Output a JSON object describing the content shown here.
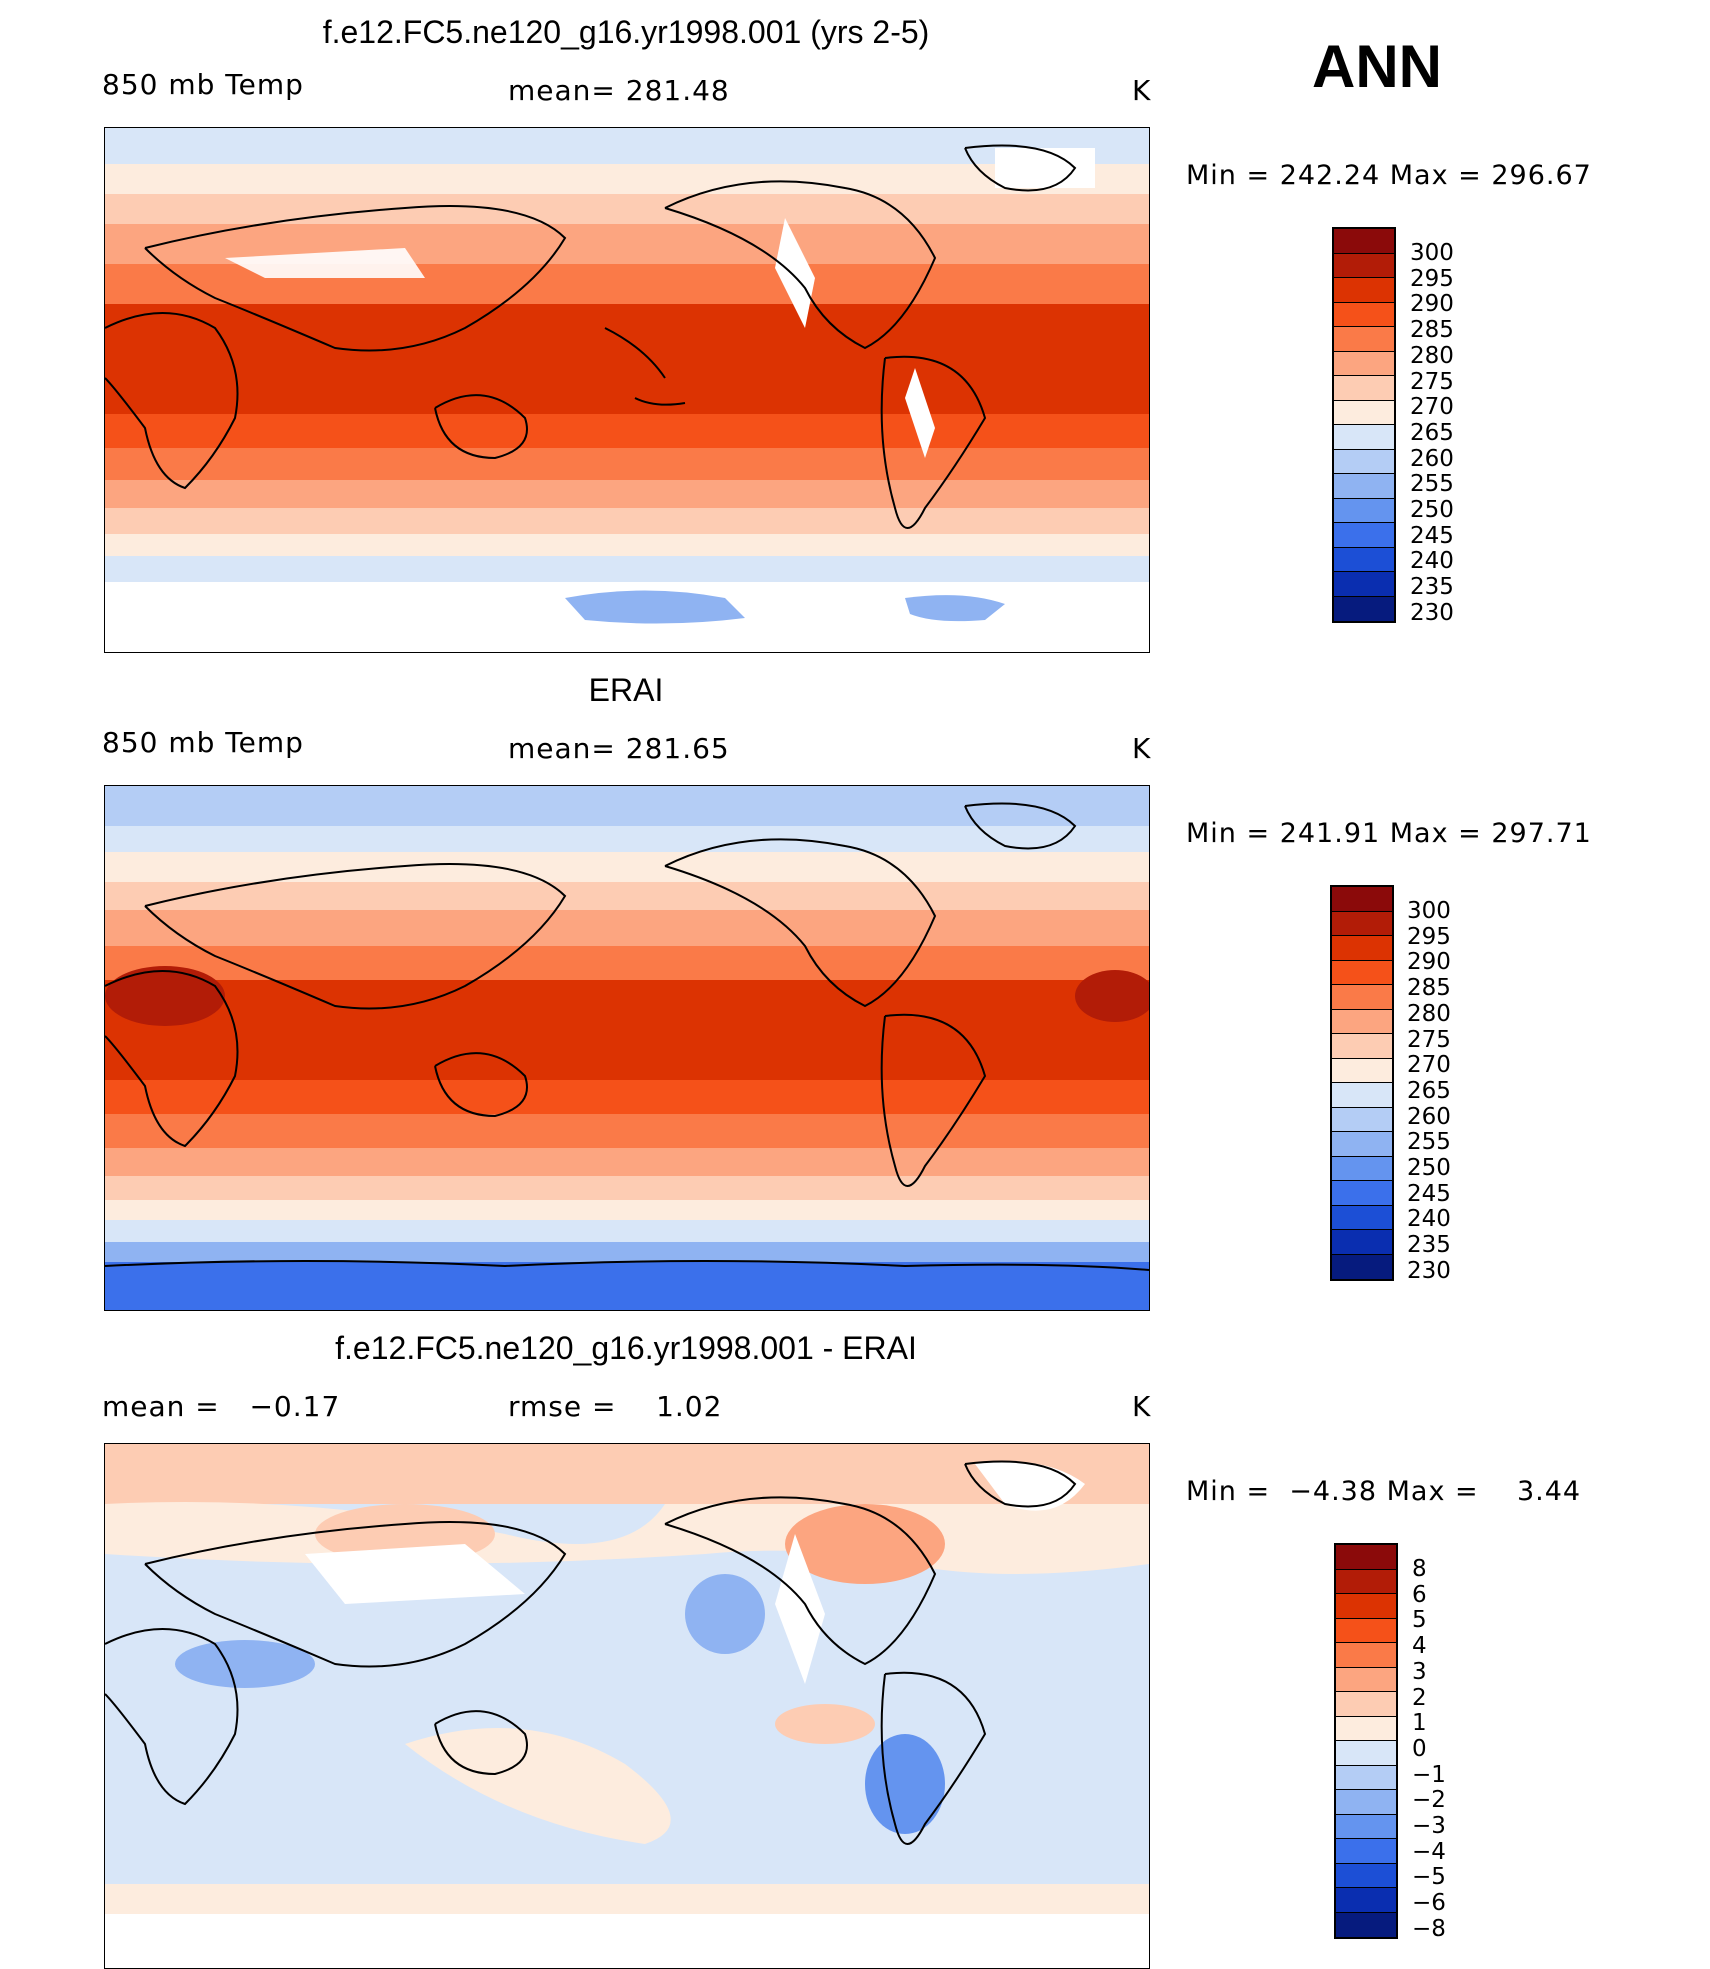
{
  "season": "ANN",
  "panels": [
    {
      "title": "f.e12.FC5.ne120_g16.yr1998.001 (yrs 2-5)",
      "left_label": "850 mb Temp",
      "center_label": "mean= 281.48",
      "units": "K",
      "minmax": "Min = 242.24 Max = 296.67"
    },
    {
      "title": "ERAI",
      "left_label": "850 mb Temp",
      "center_label": "mean= 281.65",
      "units": "K",
      "minmax": "Min = 241.91 Max = 297.71"
    },
    {
      "title": "f.e12.FC5.ne120_g16.yr1998.001 - ERAI",
      "left_label": "mean =   −0.17",
      "center_label": "rmse =    1.02",
      "units": "K",
      "minmax": "Min =  −4.38 Max =    3.44"
    }
  ],
  "colorbars": {
    "temperature": {
      "levels": [
        "300",
        "295",
        "290",
        "285",
        "280",
        "275",
        "270",
        "265",
        "260",
        "255",
        "250",
        "245",
        "240",
        "235",
        "230"
      ],
      "colors": [
        "#8b0a0a",
        "#b21c07",
        "#dc3302",
        "#f55119",
        "#fa7a48",
        "#fca580",
        "#fdccb3",
        "#fdecde",
        "#d8e6f8",
        "#b4cdf5",
        "#8fb3f2",
        "#6494ef",
        "#3b70eb",
        "#1c4fd6",
        "#0a2eb0",
        "#061b7e"
      ]
    },
    "difference": {
      "levels": [
        "8",
        "6",
        "5",
        "4",
        "3",
        "2",
        "1",
        "0",
        "−1",
        "−2",
        "−3",
        "−4",
        "−5",
        "−6",
        "−8"
      ],
      "colors": [
        "#8b0a0a",
        "#b21c07",
        "#dc3302",
        "#f55119",
        "#fa7a48",
        "#fca580",
        "#fdccb3",
        "#fdecde",
        "#d8e6f8",
        "#b4cdf5",
        "#8fb3f2",
        "#6494ef",
        "#3b70eb",
        "#1c4fd6",
        "#0a2eb0",
        "#061b7e"
      ]
    }
  }
}
